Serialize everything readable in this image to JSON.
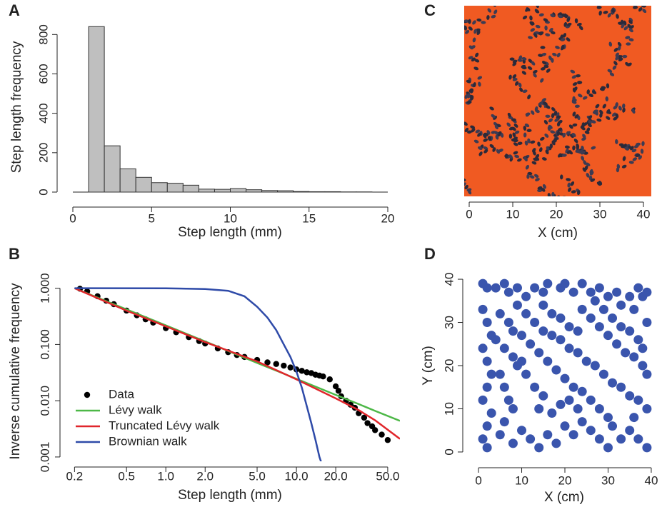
{
  "chart_data": [
    {
      "panel": "A",
      "type": "histogram",
      "xlabel": "Step length (mm)",
      "ylabel": "Step length frequency",
      "bins": [
        1,
        2,
        3,
        4,
        5,
        6,
        7,
        8,
        9,
        10,
        11,
        12,
        13,
        14,
        15,
        16,
        17,
        18,
        19,
        20
      ],
      "values": [
        840,
        235,
        118,
        75,
        48,
        45,
        35,
        15,
        14,
        18,
        12,
        8,
        7,
        3,
        2,
        2,
        1,
        1,
        0
      ],
      "color": "#bfbfbf",
      "xlim": [
        0,
        20
      ],
      "xticks": [
        0,
        5,
        10,
        15,
        20
      ],
      "ylim": [
        0,
        870
      ],
      "yticks": [
        0,
        200,
        400,
        600,
        800
      ]
    },
    {
      "panel": "C",
      "type": "image",
      "xlabel": "X (cm)",
      "xlim": [
        -1.15,
        41.8
      ],
      "xticks": [
        0,
        10,
        20,
        30,
        40
      ]
    },
    {
      "panel": "B",
      "type": "line",
      "xlabel": "Step length (mm)",
      "ylabel": "Inverse cumulative frequency",
      "xscale": "log",
      "yscale": "log",
      "xlim": [
        0.18,
        62
      ],
      "xticks": [
        0.2,
        0.5,
        {
          "value": 1,
          "label": "1.0"
        },
        {
          "value": 2,
          "label": "2.0"
        },
        {
          "value": 5,
          "label": "5.0"
        },
        {
          "value": 10,
          "label": "10.0"
        },
        {
          "value": 20,
          "label": "20.0"
        },
        {
          "value": 50,
          "label": "50.0"
        }
      ],
      "ylim": [
        0.00085,
        1.25
      ],
      "yticks": [
        {
          "value": 0.001,
          "label": "0.001"
        },
        {
          "value": 0.01,
          "label": "0.010"
        },
        {
          "value": 0.1,
          "label": "0.100"
        },
        {
          "value": 1,
          "label": "1.000"
        }
      ],
      "legend": "lower-left",
      "series": [
        {
          "name": "Data",
          "marker": "point",
          "color": "#000000",
          "x": [
            0.22,
            0.25,
            0.3,
            0.35,
            0.4,
            0.5,
            0.6,
            0.7,
            0.8,
            1,
            1.2,
            1.5,
            1.8,
            2,
            2.5,
            3,
            3.5,
            4,
            5,
            6,
            7,
            8,
            9,
            10,
            11,
            12,
            13,
            14,
            15,
            16,
            18,
            20,
            21,
            22,
            24,
            26,
            28,
            30,
            33,
            35,
            38,
            40,
            45,
            50
          ],
          "values": [
            0.98,
            0.88,
            0.72,
            0.6,
            0.52,
            0.4,
            0.33,
            0.28,
            0.245,
            0.195,
            0.165,
            0.135,
            0.115,
            0.104,
            0.085,
            0.073,
            0.065,
            0.06,
            0.053,
            0.048,
            0.045,
            0.042,
            0.039,
            0.036,
            0.034,
            0.032,
            0.031,
            0.029,
            0.028,
            0.027,
            0.024,
            0.018,
            0.015,
            0.012,
            0.01,
            0.0085,
            0.0075,
            0.006,
            0.005,
            0.004,
            0.0035,
            0.003,
            0.0025,
            0.002
          ]
        },
        {
          "name": "Lévy walk",
          "marker": "line",
          "color": "#4db847",
          "x": [
            0.2,
            0.5,
            1,
            2,
            5,
            10,
            20,
            30,
            40,
            62
          ],
          "values": [
            1,
            0.42,
            0.218,
            0.113,
            0.047,
            0.0245,
            0.0127,
            0.0087,
            0.0066,
            0.0044
          ]
        },
        {
          "name": "Truncated Lévy walk",
          "marker": "line",
          "color": "#e0262b",
          "x": [
            0.2,
            0.5,
            1,
            2,
            5,
            10,
            20,
            30,
            40,
            62
          ],
          "values": [
            1,
            0.4,
            0.21,
            0.11,
            0.05,
            0.024,
            0.011,
            0.0068,
            0.0045,
            0.0021
          ]
        },
        {
          "name": "Brownian walk",
          "marker": "line",
          "color": "#2e4aa8",
          "x": [
            0.2,
            1,
            2,
            3,
            4,
            5,
            6,
            7,
            8,
            9,
            10,
            11,
            12,
            13,
            14,
            15,
            15.8
          ],
          "values": [
            1,
            0.995,
            0.97,
            0.9,
            0.72,
            0.47,
            0.3,
            0.18,
            0.1,
            0.06,
            0.033,
            0.017,
            0.008,
            0.004,
            0.002,
            0.001,
            0.0007
          ]
        }
      ]
    },
    {
      "panel": "D",
      "type": "scatter",
      "xlabel": "X (cm)",
      "ylabel": "Y (cm)",
      "color": "#3a55ad",
      "xlim": [
        -1,
        41
      ],
      "xticks": [
        0,
        10,
        20,
        30,
        40
      ],
      "ylim": [
        -1,
        41
      ],
      "yticks": [
        0,
        10,
        20,
        30,
        40
      ],
      "x": [
        1,
        2,
        4,
        6,
        7,
        9,
        11,
        13,
        15,
        16,
        19,
        20,
        22,
        24,
        26,
        28,
        30,
        32,
        33,
        35,
        36,
        37,
        38,
        39,
        1,
        2,
        3,
        1,
        2,
        3,
        2,
        1,
        3,
        2,
        1,
        2,
        5,
        7,
        8,
        10,
        12,
        14,
        16,
        18,
        20,
        22,
        24,
        26,
        28,
        30,
        31,
        9,
        11,
        13,
        15,
        17,
        19,
        21,
        23,
        25,
        27,
        29,
        31,
        33,
        35,
        37,
        39,
        24,
        26,
        28,
        30,
        32,
        34,
        36,
        38,
        39,
        5,
        6,
        7,
        8,
        6,
        5,
        8,
        10,
        12,
        14,
        16,
        18,
        20,
        22,
        24,
        26,
        28,
        30,
        33,
        35,
        37,
        39,
        36,
        9,
        11,
        13,
        15,
        14,
        17,
        19,
        21,
        23,
        27,
        29,
        31,
        33,
        35,
        37,
        39,
        38,
        15,
        17,
        19,
        21,
        23,
        4,
        6,
        8,
        10
      ],
      "y": [
        39,
        38,
        38,
        39,
        37,
        38,
        36,
        38,
        37,
        39,
        38,
        39,
        37,
        39,
        37,
        38,
        36,
        37,
        34,
        36,
        33,
        38,
        36,
        37,
        33,
        30,
        27,
        24,
        21,
        18,
        15,
        12,
        9,
        6,
        3,
        1,
        32,
        30,
        28,
        27,
        25,
        23,
        21,
        19,
        17,
        15,
        14,
        12,
        10,
        8,
        6,
        34,
        32,
        30,
        28,
        27,
        26,
        24,
        23,
        21,
        20,
        18,
        16,
        15,
        13,
        12,
        10,
        33,
        31,
        29,
        27,
        25,
        23,
        22,
        20,
        18,
        18,
        15,
        12,
        10,
        7,
        4,
        2,
        5,
        3,
        1,
        4,
        2,
        6,
        4,
        7,
        5,
        3,
        1,
        3,
        5,
        3,
        1,
        8,
        20,
        18,
        15,
        13,
        10,
        9,
        11,
        12,
        10,
        35,
        33,
        31,
        29,
        28,
        26,
        30,
        24,
        34,
        32,
        31,
        29,
        28,
        26,
        24,
        22,
        21
      ]
    }
  ]
}
